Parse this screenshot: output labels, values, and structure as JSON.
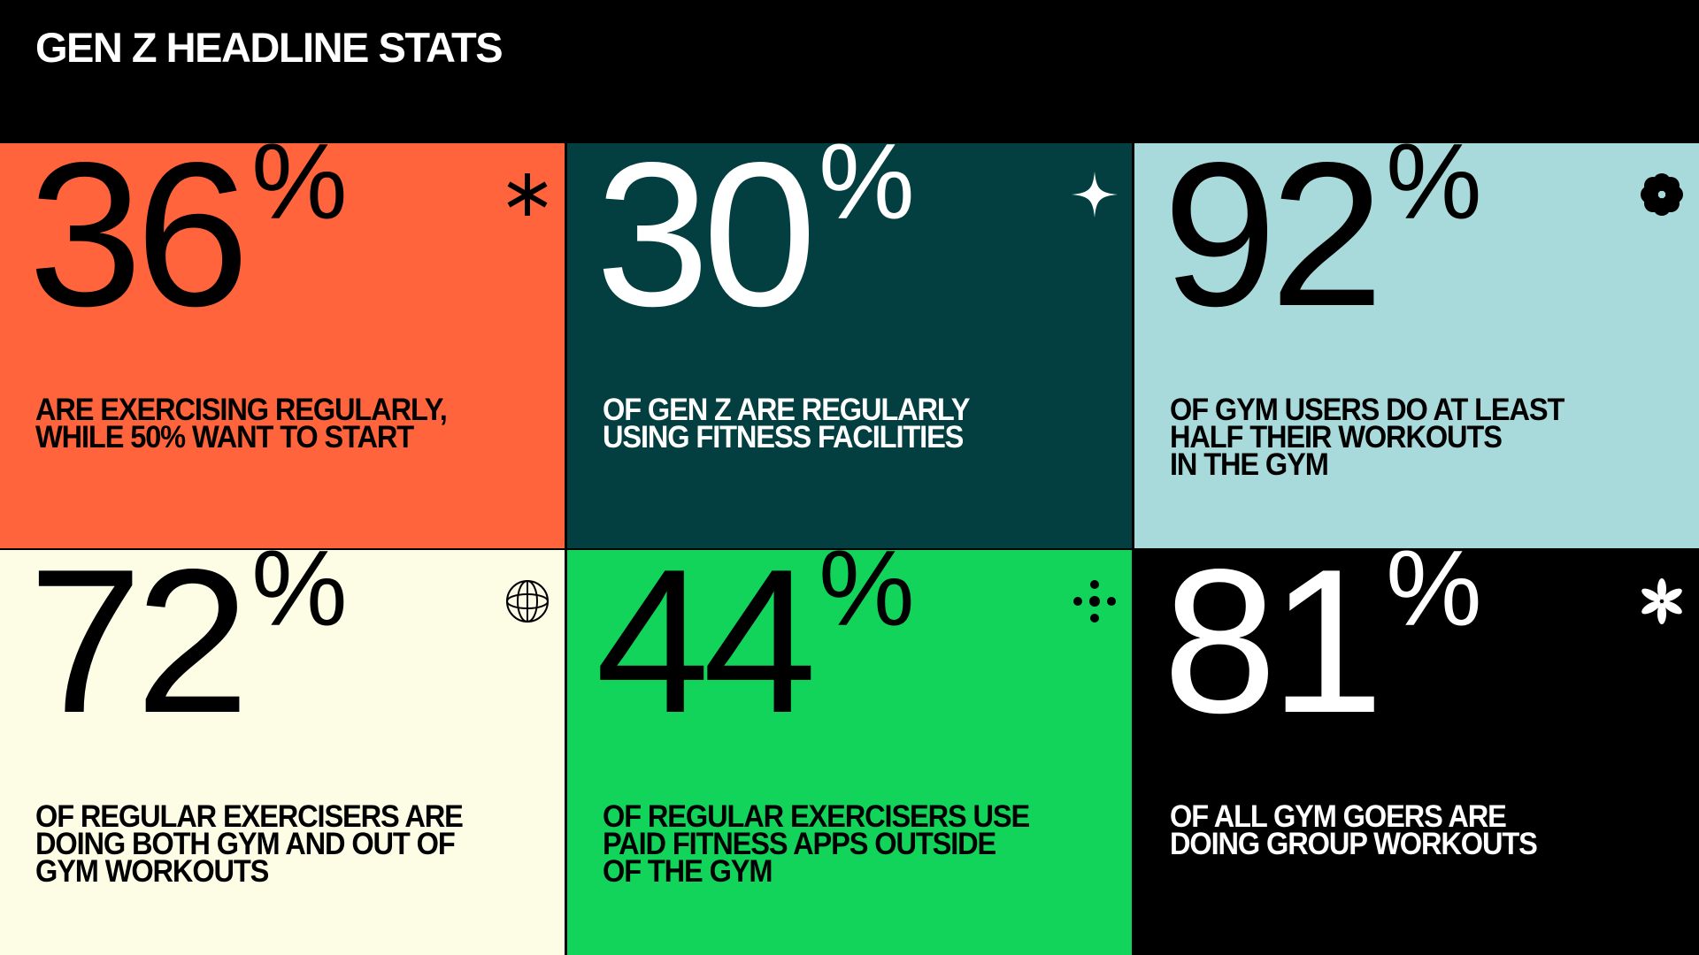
{
  "title": "GEN Z HEADLINE STATS",
  "stats": [
    {
      "value": "36",
      "unit": "%",
      "text": "ARE EXERCISING REGULARLY,\nWHILE 50% WANT TO START",
      "bg": "#FF643C",
      "fg": "#000000",
      "icon": "asterisk-icon"
    },
    {
      "value": "30",
      "unit": "%",
      "text": "OF GEN Z ARE REGULARLY\nUSING FITNESS FACILITIES",
      "bg": "#033F40",
      "fg": "#FFFFFF",
      "icon": "sparkle-icon"
    },
    {
      "value": "92",
      "unit": "%",
      "text": "OF GYM USERS DO AT LEAST\nHALF THEIR WORKOUTS\nIN THE GYM",
      "bg": "#A8DADB",
      "fg": "#000000",
      "icon": "flower-icon"
    },
    {
      "value": "72",
      "unit": "%",
      "text": "OF REGULAR EXERCISERS ARE\nDOING BOTH GYM AND OUT OF\nGYM WORKOUTS",
      "bg": "#FDFDE6",
      "fg": "#000000",
      "icon": "globe-icon"
    },
    {
      "value": "44",
      "unit": "%",
      "text": "OF REGULAR EXERCISERS USE\nPAID FITNESS APPS OUTSIDE\nOF THE GYM",
      "bg": "#12D45A",
      "fg": "#000000",
      "icon": "dots-cross-icon"
    },
    {
      "value": "81",
      "unit": "%",
      "text": "OF ALL GYM GOERS ARE\nDOING GROUP WORKOUTS",
      "bg": "#000000",
      "fg": "#FFFFFF",
      "icon": "petal-asterisk-icon"
    }
  ]
}
